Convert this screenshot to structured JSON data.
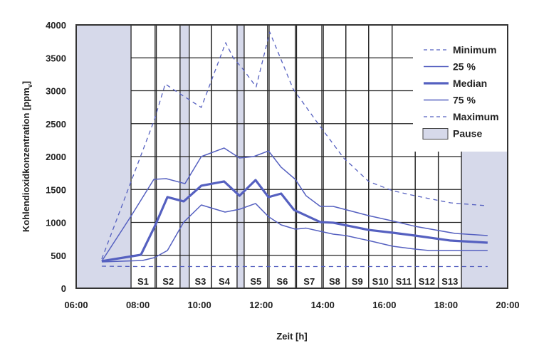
{
  "chart_data": {
    "type": "line",
    "title": "",
    "xlabel": "Zeit [h]",
    "ylabel": "Kohlendioxidkonzentration [ppmv]",
    "xlim": [
      6,
      20
    ],
    "ylim": [
      0,
      4000
    ],
    "x_ticks": [
      {
        "value": 6,
        "label": "06:00"
      },
      {
        "value": 8,
        "label": "08:00"
      },
      {
        "value": 10,
        "label": "10:00"
      },
      {
        "value": 12,
        "label": "12:00"
      },
      {
        "value": 14,
        "label": "14:00"
      },
      {
        "value": 16,
        "label": "16:00"
      },
      {
        "value": 18,
        "label": "18:00"
      },
      {
        "value": 20,
        "label": "20:00"
      }
    ],
    "y_ticks": [
      0,
      500,
      1000,
      1500,
      2000,
      2500,
      3000,
      3500,
      4000
    ],
    "grid": true,
    "legend_position": "top-right",
    "pauses": [
      [
        6.0,
        7.78
      ],
      [
        9.37,
        9.67
      ],
      [
        11.22,
        11.45
      ],
      [
        18.5,
        20.0
      ]
    ],
    "sessions": [
      {
        "label": "S1",
        "start": 7.78,
        "end": 8.56
      },
      {
        "label": "S2",
        "start": 8.6,
        "end": 9.37
      },
      {
        "label": "S3",
        "start": 9.67,
        "end": 10.39
      },
      {
        "label": "S4",
        "start": 10.39,
        "end": 11.22
      },
      {
        "label": "S5",
        "start": 11.45,
        "end": 12.21
      },
      {
        "label": "S6",
        "start": 12.26,
        "end": 13.11
      },
      {
        "label": "S7",
        "start": 13.15,
        "end": 13.97
      },
      {
        "label": "S8",
        "start": 14.02,
        "end": 14.75
      },
      {
        "label": "S9",
        "start": 14.75,
        "end": 15.49
      },
      {
        "label": "S10",
        "start": 15.49,
        "end": 16.25
      },
      {
        "label": "S11",
        "start": 16.25,
        "end": 17.0
      },
      {
        "label": "S12",
        "start": 17.0,
        "end": 17.75
      },
      {
        "label": "S13",
        "start": 17.75,
        "end": 18.5
      }
    ],
    "series": [
      {
        "name": "Minimum",
        "style": "dashed",
        "width": 1.3,
        "x": [
          6.83,
          8.0,
          10.0,
          12.0,
          14.0,
          16.0,
          18.0,
          19.35
        ],
        "y": [
          335,
          330,
          330,
          330,
          330,
          330,
          330,
          330
        ]
      },
      {
        "name": "25 %",
        "style": "solid",
        "width": 1.5,
        "x": [
          6.83,
          7.76,
          8.52,
          8.92,
          9.53,
          10.06,
          10.8,
          11.3,
          11.76,
          12.24,
          12.65,
          13.11,
          13.46,
          13.92,
          14.34,
          15.49,
          16.27,
          16.99,
          18.3,
          19.35
        ],
        "y": [
          411,
          1081,
          1654,
          1665,
          1589,
          2000,
          2130,
          1978,
          2000,
          2086,
          1838,
          1654,
          1405,
          1243,
          1243,
          1103,
          1022,
          941,
          832,
          800
        ]
      },
      {
        "name": "Median",
        "style": "solid",
        "width": 3.2,
        "x": [
          6.83,
          8.1,
          8.56,
          8.96,
          9.49,
          10.06,
          10.8,
          11.3,
          11.82,
          12.24,
          12.65,
          13.07,
          13.92,
          14.34,
          15.49,
          16.27,
          16.99,
          18.15,
          19.35
        ],
        "y": [
          411,
          508,
          951,
          1384,
          1319,
          1557,
          1622,
          1405,
          1643,
          1384,
          1438,
          1189,
          1005,
          995,
          886,
          843,
          800,
          724,
          692
        ]
      },
      {
        "name": "75 %",
        "style": "solid",
        "width": 1.5,
        "x": [
          6.83,
          8.15,
          8.54,
          8.96,
          9.49,
          10.06,
          10.83,
          11.3,
          11.82,
          12.24,
          12.65,
          13.11,
          13.46,
          13.92,
          14.34,
          14.75,
          15.49,
          16.27,
          16.99,
          17.45,
          19.35
        ],
        "y": [
          400,
          422,
          465,
          573,
          1005,
          1265,
          1157,
          1200,
          1287,
          1087,
          962,
          897,
          913,
          865,
          822,
          800,
          724,
          638,
          595,
          573,
          573
        ]
      },
      {
        "name": "Maximum",
        "style": "dashed",
        "width": 1.3,
        "x": [
          6.83,
          8.54,
          8.89,
          9.23,
          10.06,
          10.85,
          11.1,
          11.4,
          11.84,
          12.28,
          13.04,
          13.92,
          14.68,
          15.49,
          16.27,
          16.99,
          18.15,
          19.3
        ],
        "y": [
          443,
          2562,
          3103,
          2995,
          2746,
          3730,
          3497,
          3335,
          3059,
          3892,
          3027,
          2454,
          1978,
          1622,
          1481,
          1405,
          1297,
          1254
        ]
      }
    ],
    "legend": [
      "Minimum",
      "25 %",
      "Median",
      "75 %",
      "Maximum",
      "Pause"
    ]
  },
  "colors": {
    "line": "#5560c0",
    "pause": "#d6d9ea",
    "grid": "#222222"
  }
}
